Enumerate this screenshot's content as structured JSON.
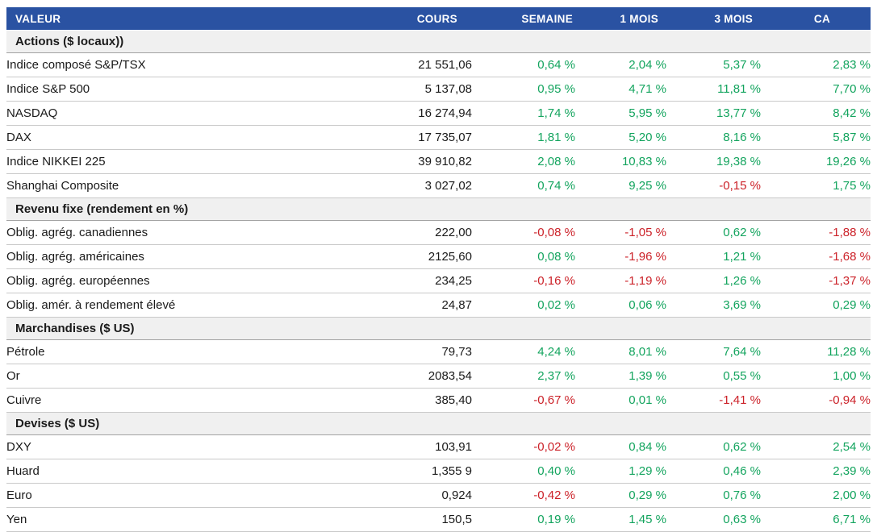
{
  "colors": {
    "header_bg": "#2A52A2",
    "header_text": "#FFFFFF",
    "section_bg": "#F0F0F0",
    "positive": "#13A45E",
    "negative": "#CC2229"
  },
  "table": {
    "columns": [
      {
        "key": "label",
        "label": "VALEUR"
      },
      {
        "key": "cours",
        "label": "COURS"
      },
      {
        "key": "semaine",
        "label": "SEMAINE"
      },
      {
        "key": "mois1",
        "label": "1 MOIS"
      },
      {
        "key": "mois3",
        "label": "3 MOIS"
      },
      {
        "key": "ca",
        "label": "CA"
      }
    ],
    "sections": [
      {
        "title": "Actions ($ locaux))",
        "rows": [
          {
            "label": "Indice composé S&P/TSX",
            "cours": "21 551,06",
            "semaine": "0,64 %",
            "mois1": "2,04 %",
            "mois3": "5,37 %",
            "ca": "2,83 %"
          },
          {
            "label": "Indice S&P 500",
            "cours": "5 137,08",
            "semaine": "0,95 %",
            "mois1": "4,71 %",
            "mois3": "11,81 %",
            "ca": "7,70 %"
          },
          {
            "label": "NASDAQ",
            "cours": "16 274,94",
            "semaine": "1,74 %",
            "mois1": "5,95 %",
            "mois3": "13,77 %",
            "ca": "8,42 %"
          },
          {
            "label": "DAX",
            "cours": "17 735,07",
            "semaine": "1,81 %",
            "mois1": "5,20 %",
            "mois3": "8,16 %",
            "ca": "5,87 %"
          },
          {
            "label": "Indice NIKKEI 225",
            "cours": "39 910,82",
            "semaine": "2,08 %",
            "mois1": "10,83 %",
            "mois3": "19,38 %",
            "ca": "19,26 %"
          },
          {
            "label": "Shanghai Composite",
            "cours": "3 027,02",
            "semaine": "0,74 %",
            "mois1": "9,25 %",
            "mois3": "-0,15 %",
            "ca": "1,75 %"
          }
        ]
      },
      {
        "title": "Revenu fixe (rendement en %)",
        "rows": [
          {
            "label": "Oblig. agrég. canadiennes",
            "cours": "222,00",
            "semaine": "-0,08 %",
            "mois1": "-1,05 %",
            "mois3": "0,62 %",
            "ca": "-1,88 %"
          },
          {
            "label": "Oblig. agrég. américaines",
            "cours": "2125,60",
            "semaine": "0,08 %",
            "mois1": "-1,96 %",
            "mois3": "1,21 %",
            "ca": "-1,68 %"
          },
          {
            "label": "Oblig. agrég. européennes",
            "cours": "234,25",
            "semaine": "-0,16 %",
            "mois1": "-1,19 %",
            "mois3": "1,26 %",
            "ca": "-1,37 %"
          },
          {
            "label": "Oblig. amér. à rendement élevé",
            "cours": "24,87",
            "semaine": "0,02 %",
            "mois1": "0,06 %",
            "mois3": "3,69 %",
            "ca": "0,29 %"
          }
        ]
      },
      {
        "title": "Marchandises ($ US)",
        "rows": [
          {
            "label": "Pétrole",
            "cours": "79,73",
            "semaine": "4,24 %",
            "mois1": "8,01 %",
            "mois3": "7,64 %",
            "ca": "11,28 %"
          },
          {
            "label": "Or",
            "cours": "2083,54",
            "semaine": "2,37 %",
            "mois1": "1,39 %",
            "mois3": "0,55 %",
            "ca": "1,00 %"
          },
          {
            "label": "Cuivre",
            "cours": "385,40",
            "semaine": "-0,67 %",
            "mois1": "0,01 %",
            "mois3": "-1,41 %",
            "ca": "-0,94 %"
          }
        ]
      },
      {
        "title": "Devises ($ US)",
        "rows": [
          {
            "label": "DXY",
            "cours": "103,91",
            "semaine": "-0,02 %",
            "mois1": "0,84 %",
            "mois3": "0,62 %",
            "ca": "2,54 %"
          },
          {
            "label": "Huard",
            "cours": "1,355 9",
            "semaine": "0,40 %",
            "mois1": "1,29 %",
            "mois3": "0,46 %",
            "ca": "2,39 %"
          },
          {
            "label": "Euro",
            "cours": "0,924",
            "semaine": "-0,42 %",
            "mois1": "0,29 %",
            "mois3": "0,76 %",
            "ca": "2,00 %"
          },
          {
            "label": "Yen",
            "cours": "150,5",
            "semaine": "0,19 %",
            "mois1": "1,45 %",
            "mois3": "0,63 %",
            "ca": "6,71 %"
          }
        ]
      }
    ]
  }
}
